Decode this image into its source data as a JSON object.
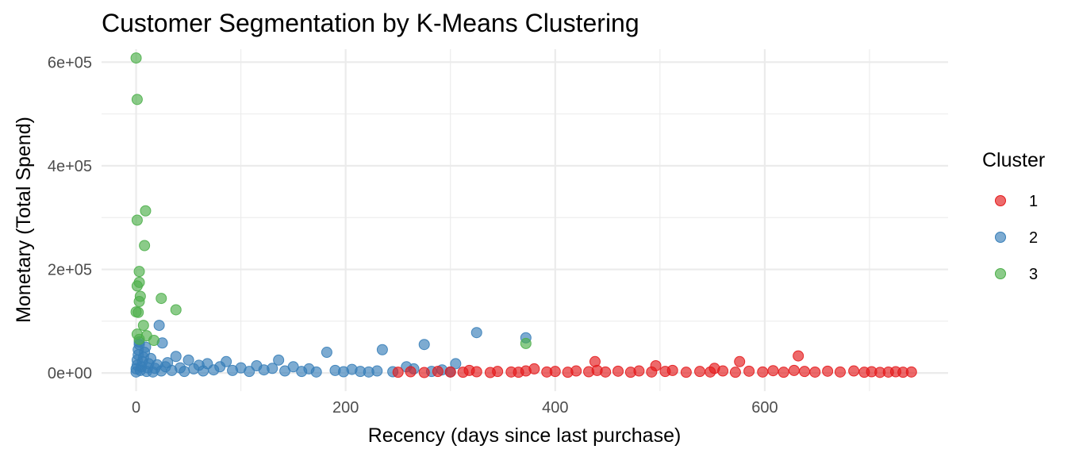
{
  "chart_data": {
    "type": "scatter",
    "title": "Customer Segmentation by K-Means Clustering",
    "xlabel": "Recency (days since last purchase)",
    "ylabel": "Monetary (Total Spend)",
    "xlim": [
      -33,
      775
    ],
    "ylim": [
      -35000,
      625000
    ],
    "x_ticks": [
      0,
      200,
      400,
      600
    ],
    "x_tick_labels": [
      "0",
      "200",
      "400",
      "600"
    ],
    "y_ticks": [
      0,
      200000,
      400000,
      600000
    ],
    "y_tick_labels": [
      "0e+00",
      "2e+05",
      "4e+05",
      "6e+05"
    ],
    "grid": true,
    "legend": {
      "title": "Cluster",
      "position": "right",
      "entries": [
        {
          "label": "1",
          "color": "#E41A1C"
        },
        {
          "label": "2",
          "color": "#377EB8"
        },
        {
          "label": "3",
          "color": "#4DAF4A"
        }
      ]
    },
    "series": [
      {
        "name": "1",
        "color": "#E41A1C",
        "points": [
          [
            250,
            1500
          ],
          [
            262,
            2500
          ],
          [
            275,
            1000
          ],
          [
            288,
            3000
          ],
          [
            300,
            2000
          ],
          [
            312,
            1500
          ],
          [
            318,
            5000
          ],
          [
            325,
            2500
          ],
          [
            338,
            1000
          ],
          [
            345,
            3000
          ],
          [
            358,
            2000
          ],
          [
            365,
            1500
          ],
          [
            372,
            4000
          ],
          [
            380,
            8000
          ],
          [
            392,
            2000
          ],
          [
            400,
            3000
          ],
          [
            412,
            1500
          ],
          [
            420,
            4000
          ],
          [
            432,
            2500
          ],
          [
            438,
            22000
          ],
          [
            440,
            5000
          ],
          [
            448,
            2000
          ],
          [
            460,
            3500
          ],
          [
            472,
            1500
          ],
          [
            480,
            4000
          ],
          [
            492,
            2000
          ],
          [
            496,
            14000
          ],
          [
            505,
            3000
          ],
          [
            512,
            5000
          ],
          [
            525,
            1500
          ],
          [
            538,
            3000
          ],
          [
            548,
            2000
          ],
          [
            552,
            9000
          ],
          [
            560,
            4000
          ],
          [
            572,
            1500
          ],
          [
            576,
            22000
          ],
          [
            585,
            3500
          ],
          [
            598,
            2000
          ],
          [
            608,
            4500
          ],
          [
            618,
            1500
          ],
          [
            628,
            5000
          ],
          [
            632,
            33000
          ],
          [
            638,
            3000
          ],
          [
            648,
            1800
          ],
          [
            660,
            3500
          ],
          [
            672,
            2000
          ],
          [
            685,
            4000
          ],
          [
            695,
            1500
          ],
          [
            702,
            2500
          ],
          [
            710,
            1200
          ],
          [
            718,
            1800
          ],
          [
            725,
            2500
          ],
          [
            732,
            1500
          ],
          [
            740,
            2000
          ]
        ]
      },
      {
        "name": "2",
        "color": "#377EB8",
        "points": [
          [
            0,
            2000
          ],
          [
            0,
            8000
          ],
          [
            1,
            15000
          ],
          [
            1,
            25000
          ],
          [
            2,
            35000
          ],
          [
            2,
            45000
          ],
          [
            3,
            55000
          ],
          [
            3,
            60000
          ],
          [
            4,
            5000
          ],
          [
            5,
            12000
          ],
          [
            6,
            22000
          ],
          [
            7,
            30000
          ],
          [
            8,
            40000
          ],
          [
            9,
            50000
          ],
          [
            10,
            3000
          ],
          [
            11,
            10000
          ],
          [
            12,
            18000
          ],
          [
            14,
            28000
          ],
          [
            16,
            2000
          ],
          [
            18,
            9000
          ],
          [
            20,
            16000
          ],
          [
            22,
            92000
          ],
          [
            24,
            4000
          ],
          [
            25,
            58000
          ],
          [
            28,
            12000
          ],
          [
            30,
            20000
          ],
          [
            34,
            5000
          ],
          [
            38,
            32000
          ],
          [
            42,
            10000
          ],
          [
            46,
            3000
          ],
          [
            50,
            25000
          ],
          [
            55,
            8000
          ],
          [
            60,
            15000
          ],
          [
            64,
            4000
          ],
          [
            68,
            18000
          ],
          [
            74,
            6000
          ],
          [
            80,
            12000
          ],
          [
            86,
            22000
          ],
          [
            92,
            5000
          ],
          [
            100,
            10000
          ],
          [
            108,
            3000
          ],
          [
            115,
            14000
          ],
          [
            122,
            6000
          ],
          [
            130,
            9000
          ],
          [
            136,
            25000
          ],
          [
            142,
            4000
          ],
          [
            150,
            12000
          ],
          [
            158,
            3000
          ],
          [
            165,
            8000
          ],
          [
            172,
            2000
          ],
          [
            182,
            40000
          ],
          [
            190,
            5000
          ],
          [
            198,
            2500
          ],
          [
            206,
            7000
          ],
          [
            214,
            3000
          ],
          [
            222,
            2000
          ],
          [
            230,
            4000
          ],
          [
            235,
            45000
          ],
          [
            245,
            2500
          ],
          [
            258,
            12000
          ],
          [
            265,
            8000
          ],
          [
            275,
            55000
          ],
          [
            282,
            3000
          ],
          [
            292,
            6000
          ],
          [
            300,
            2000
          ],
          [
            305,
            18000
          ],
          [
            325,
            78000
          ],
          [
            372,
            68000
          ]
        ]
      },
      {
        "name": "3",
        "color": "#4DAF4A",
        "points": [
          [
            0,
            608000
          ],
          [
            1,
            528000
          ],
          [
            1,
            295000
          ],
          [
            9,
            313000
          ],
          [
            8,
            246000
          ],
          [
            3,
            196000
          ],
          [
            3,
            175000
          ],
          [
            1,
            168000
          ],
          [
            4,
            148000
          ],
          [
            3,
            138000
          ],
          [
            0,
            118000
          ],
          [
            2,
            117000
          ],
          [
            24,
            144000
          ],
          [
            38,
            122000
          ],
          [
            7,
            92000
          ],
          [
            10,
            72000
          ],
          [
            17,
            63000
          ],
          [
            1,
            75000
          ],
          [
            3,
            65000
          ],
          [
            372,
            57000
          ]
        ]
      }
    ]
  }
}
